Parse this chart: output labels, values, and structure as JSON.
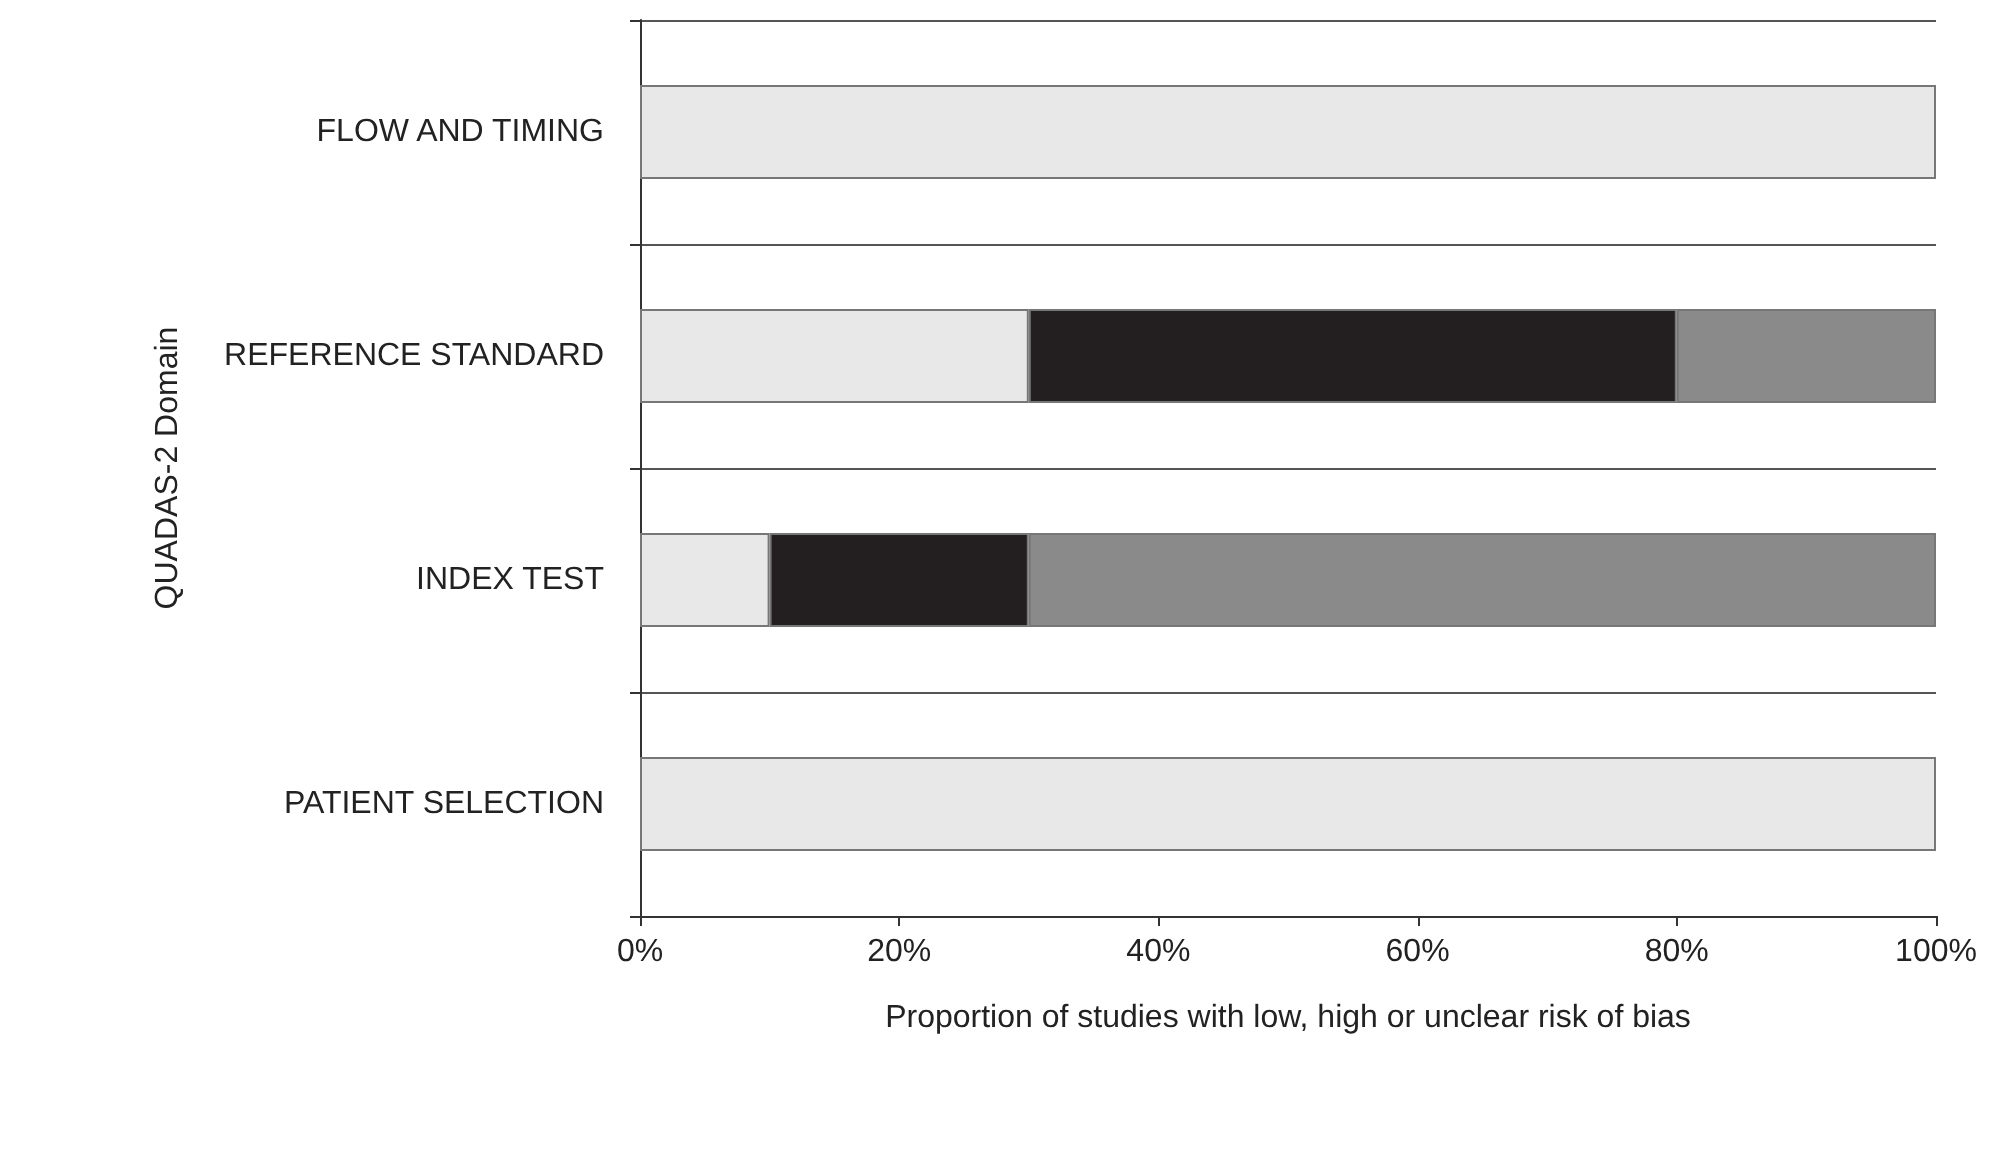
{
  "chart_data": {
    "type": "bar",
    "orientation": "horizontal",
    "stacked": true,
    "xlabel": "Proportion of studies with low, high or unclear risk of bias",
    "ylabel": "QUADAS-2 Domain",
    "categories": [
      "FLOW AND TIMING",
      "REFERENCE STANDARD",
      "INDEX TEST",
      "PATIENT SELECTION"
    ],
    "series": [
      {
        "color": "#e8e8e8",
        "values": [
          100,
          30,
          10,
          100
        ]
      },
      {
        "color": "#231f20",
        "values": [
          0,
          50,
          20,
          0
        ]
      },
      {
        "color": "#8a8a8a",
        "values": [
          0,
          20,
          70,
          0
        ]
      }
    ],
    "xlim": [
      0,
      100
    ],
    "xticks": [
      {
        "value": 0,
        "label": "0%"
      },
      {
        "value": 20,
        "label": "20%"
      },
      {
        "value": 40,
        "label": "40%"
      },
      {
        "value": 60,
        "label": "60%"
      },
      {
        "value": 80,
        "label": "80%"
      },
      {
        "value": 100,
        "label": "100%"
      }
    ],
    "grid": "y"
  }
}
